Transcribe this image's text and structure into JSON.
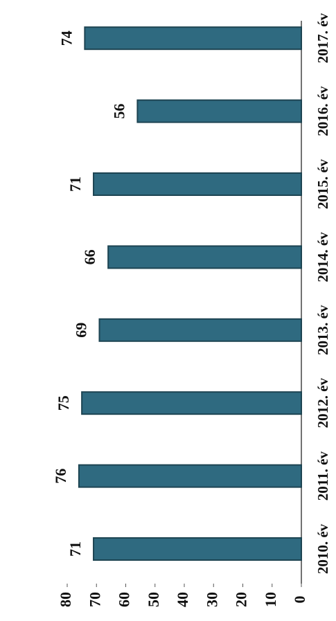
{
  "chart_data": {
    "type": "bar",
    "orientation": "rotated",
    "categories": [
      "2010. év",
      "2011. év",
      "2012. év",
      "2013. év",
      "2014. év",
      "2015. év",
      "2016. év",
      "2017. év"
    ],
    "values": [
      71,
      76,
      75,
      69,
      66,
      71,
      56,
      74
    ],
    "color": "#2f6a80",
    "ylim": [
      0,
      80
    ],
    "yticks": [
      0,
      10,
      20,
      30,
      40,
      50,
      60,
      70,
      80
    ]
  }
}
